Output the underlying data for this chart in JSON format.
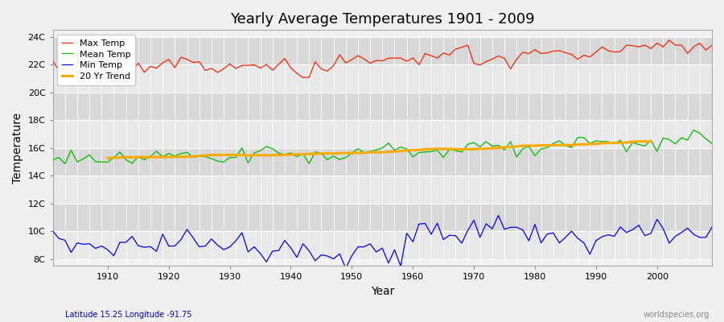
{
  "title": "Yearly Average Temperatures 1901 - 2009",
  "xlabel": "Year",
  "ylabel": "Temperature",
  "years_start": 1901,
  "years_end": 2009,
  "background_color": "#f0f0f0",
  "plot_bg_color": "#f0f0f0",
  "grid_color": "#ffffff",
  "max_temp_color": "#ff2200",
  "mean_temp_color": "#00bb00",
  "min_temp_color": "#0000ff",
  "trend_color": "#ffaa00",
  "ytick_labels": [
    "8C",
    "10C",
    "12C",
    "14C",
    "16C",
    "18C",
    "20C",
    "22C",
    "24C"
  ],
  "ytick_values": [
    8,
    10,
    12,
    14,
    16,
    18,
    20,
    22,
    24
  ],
  "ylim": [
    7.5,
    24.5
  ],
  "xlim": [
    1901,
    2009
  ],
  "subtitle_left": "Latitude 15.25 Longitude -91.75",
  "subtitle_right": "worldspecies.org",
  "legend_labels": [
    "Max Temp",
    "Mean Temp",
    "Min Temp",
    "20 Yr Trend"
  ],
  "legend_colors": [
    "#ff2200",
    "#00bb00",
    "#0000ff",
    "#ffaa00"
  ]
}
